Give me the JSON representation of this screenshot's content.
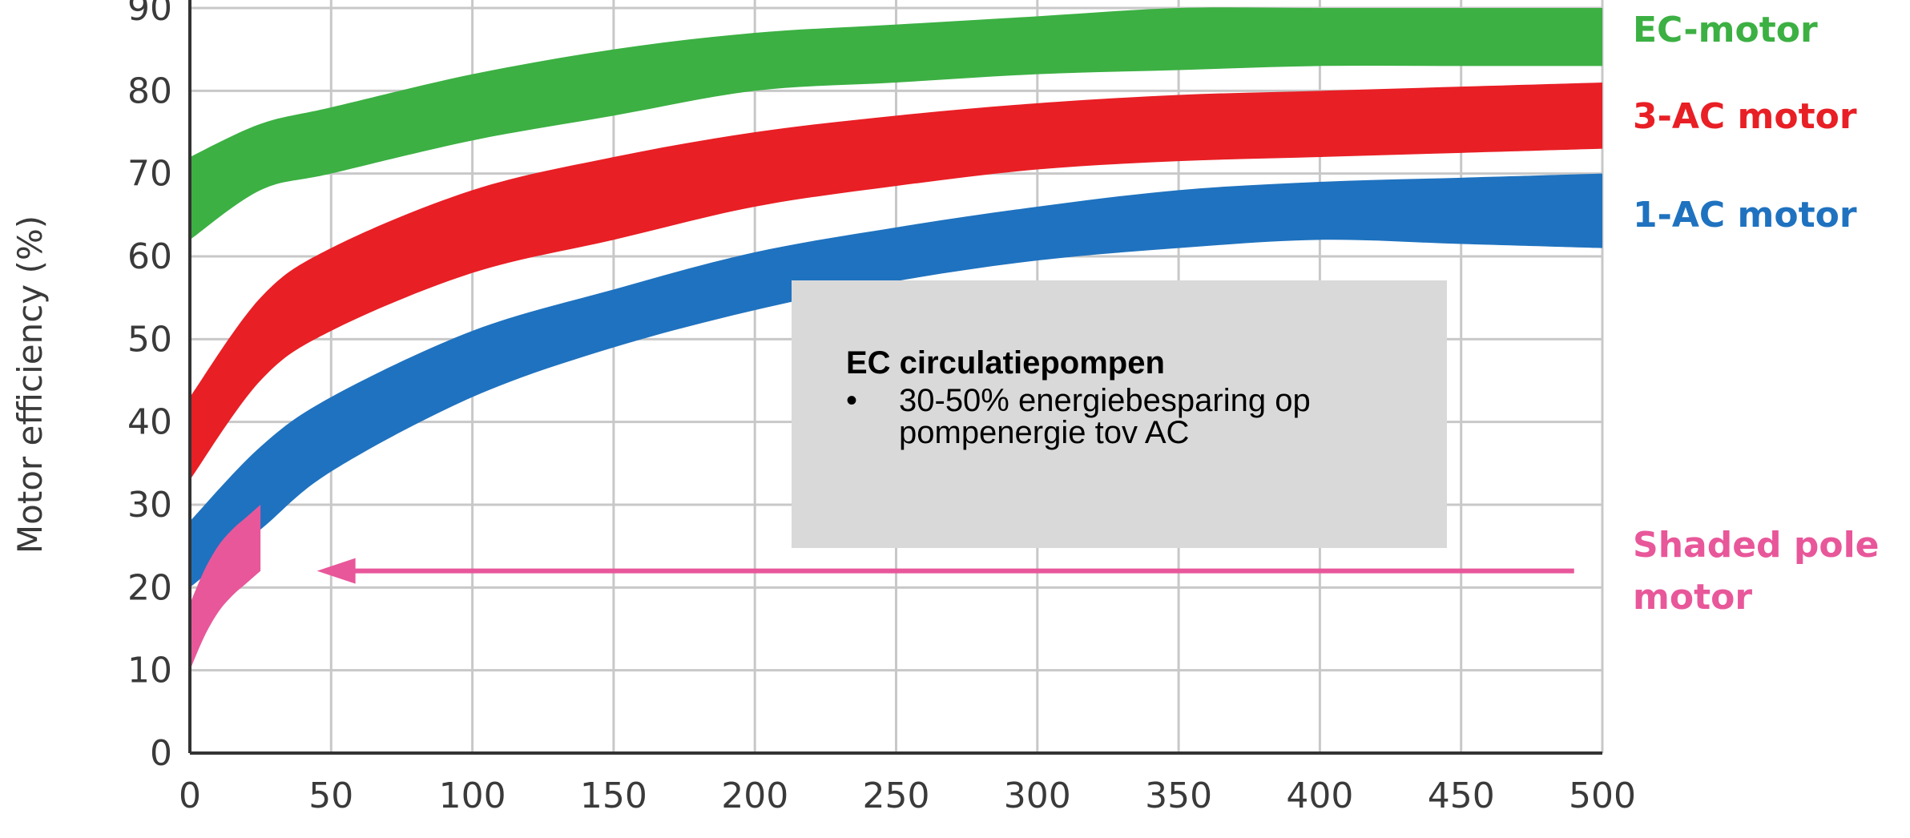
{
  "chart_data": {
    "type": "area",
    "title": "",
    "xlabel": "",
    "ylabel": "Motor efficiency (%)",
    "xlim": [
      0,
      500
    ],
    "ylim": [
      0,
      90
    ],
    "x_ticks": [
      "0",
      "50",
      "100",
      "150",
      "200",
      "250",
      "300",
      "350",
      "400",
      "450",
      "500"
    ],
    "y_ticks": [
      "0",
      "10",
      "20",
      "30",
      "40",
      "50",
      "60",
      "70",
      "80",
      "90"
    ],
    "grid": true,
    "series": [
      {
        "name": "EC-motor",
        "color": "#3cb043",
        "x": [
          0,
          25,
          50,
          100,
          150,
          200,
          250,
          300,
          350,
          400,
          450,
          500
        ],
        "upper": [
          72,
          76,
          78,
          82,
          85,
          87,
          88,
          89,
          90,
          90,
          90,
          90
        ],
        "lower": [
          62,
          68,
          70,
          74,
          77,
          80,
          81,
          82,
          82.5,
          83,
          83,
          83
        ]
      },
      {
        "name": "3-AC motor",
        "color": "#e81f25",
        "x": [
          0,
          25,
          50,
          100,
          150,
          200,
          250,
          300,
          350,
          400,
          450,
          500
        ],
        "upper": [
          43,
          55,
          61,
          68,
          72,
          75,
          77,
          78.5,
          79.5,
          80,
          80.5,
          81
        ],
        "lower": [
          33,
          45,
          51,
          58,
          62,
          66,
          68.5,
          70.5,
          71.5,
          72,
          72.5,
          73
        ]
      },
      {
        "name": "1-AC motor",
        "color": "#1f72bf",
        "x": [
          0,
          25,
          50,
          100,
          150,
          200,
          250,
          300,
          350,
          400,
          450,
          500
        ],
        "upper": [
          28,
          37,
          43,
          51,
          56,
          60.5,
          63.5,
          66,
          68,
          69,
          69.5,
          70
        ],
        "lower": [
          20,
          27,
          34,
          43,
          49,
          53.5,
          57,
          59.5,
          61,
          62,
          61.5,
          61
        ]
      },
      {
        "name": "Shaded pole\nmotor",
        "color": "#e8579a",
        "x": [
          0,
          5,
          10,
          15,
          20,
          25
        ],
        "upper": [
          18,
          22,
          25,
          27,
          28.5,
          30
        ],
        "lower": [
          10,
          14,
          17,
          19,
          20.5,
          22
        ]
      }
    ],
    "labels": {
      "ec": "EC-motor",
      "ac3": "3-AC motor",
      "ac1": "1-AC motor",
      "shaded_line1": "Shaded pole",
      "shaded_line2": "motor"
    },
    "annotations": [
      {
        "type": "arrow",
        "from_x": 490,
        "to_x": 45,
        "y": 22,
        "color": "#e8579a"
      }
    ]
  },
  "callout": {
    "title": "EC circulatiepompen",
    "bullet": "•",
    "text": "30-50% energiebesparing op pompenergie tov AC"
  }
}
